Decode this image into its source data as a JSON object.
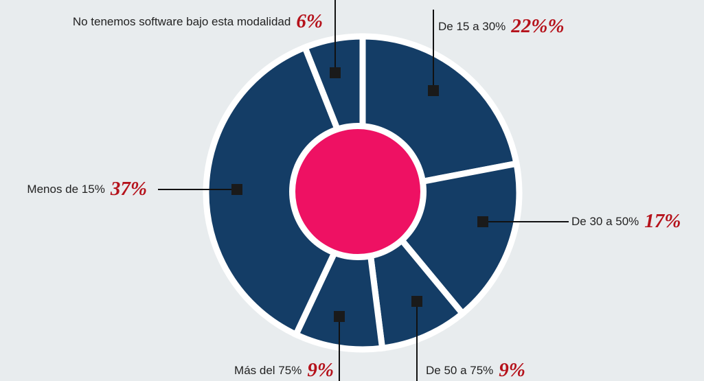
{
  "chart_data": {
    "type": "donut",
    "categories": [
      "De 15 a 30%",
      "De 30 a 50%",
      "De 50 a 75%",
      "Más del 75%",
      "Menos de 15%",
      "No tenemos software bajo esta modalidad"
    ],
    "values": [
      22,
      17,
      9,
      9,
      37,
      6
    ],
    "value_labels": [
      "22%%",
      "17%",
      "9%",
      "9%",
      "37%",
      "6%"
    ],
    "color": "#143d66",
    "center_color": "#ee1163"
  }
}
